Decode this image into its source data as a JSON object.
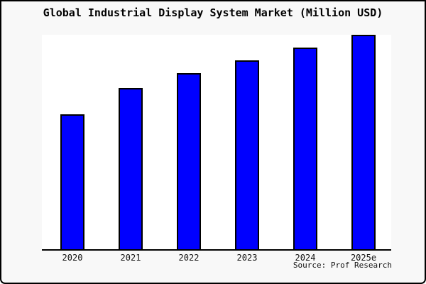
{
  "chart_data": {
    "type": "bar",
    "title": "Global Industrial Display System Market (Million USD)",
    "categories": [
      "2020",
      "2021",
      "2022",
      "2023",
      "2024",
      "2025e"
    ],
    "values": [
      63,
      75,
      82,
      88,
      94,
      100
    ],
    "values_note": "relative units estimated from bar heights; y-axis has no tick labels in the source image",
    "xlabel": "",
    "ylabel": "",
    "ylim": [
      0,
      100
    ],
    "grid": false,
    "legend": null,
    "source": "Source: Prof Research",
    "colors": {
      "bar_fill": "#0000ff",
      "bar_edge": "#000000",
      "plot_background": "#ffffff",
      "figure_background": "#f8f8f8",
      "frame_border": "#000000",
      "text": "#111111"
    }
  }
}
